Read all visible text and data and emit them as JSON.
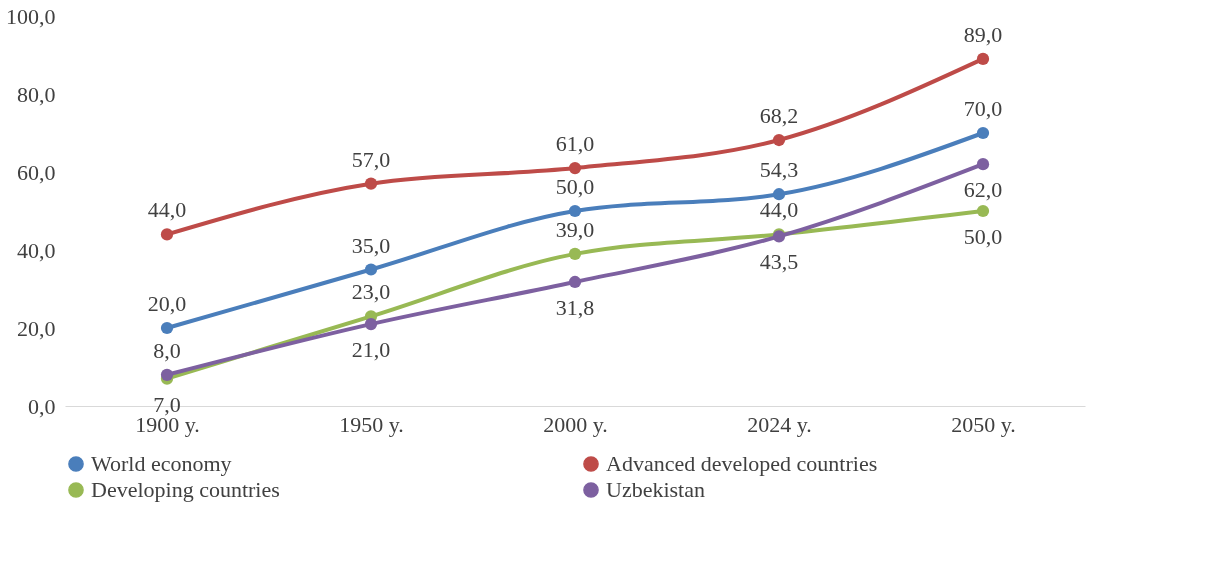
{
  "chart_data": {
    "type": "line",
    "categories": [
      "1900 y.",
      "1950 y.",
      "2000 y.",
      "2024 y.",
      "2050 y."
    ],
    "series": [
      {
        "name": "World economy",
        "color": "#4a7ebb",
        "values": [
          20,
          35,
          50,
          54.3,
          70
        ],
        "value_labels": [
          "20,0",
          "35,0",
          "50,0",
          "54,3",
          "70,0"
        ]
      },
      {
        "name": "Advanced developed countries",
        "color": "#be4b48",
        "values": [
          44,
          57,
          61,
          68.2,
          89
        ],
        "value_labels": [
          "44,0",
          "57,0",
          "61,0",
          "68,2",
          "89,0"
        ]
      },
      {
        "name": "Developing countries",
        "color": "#98b954",
        "values": [
          7,
          23,
          39,
          44,
          50
        ],
        "value_labels": [
          "7,0",
          "23,0",
          "39,0",
          "44,0",
          "50,0"
        ]
      },
      {
        "name": "Uzbekistan",
        "color": "#7d60a0",
        "values": [
          8,
          21,
          31.8,
          43.5,
          62
        ],
        "value_labels": [
          "8,0",
          "21,0",
          "31,8",
          "43,5",
          "62,0"
        ]
      }
    ],
    "ylim": [
      0,
      100
    ],
    "yticks": [
      {
        "value": 0,
        "label": "0,0"
      },
      {
        "value": 20,
        "label": "20,0"
      },
      {
        "value": 40,
        "label": "40,0"
      },
      {
        "value": 60,
        "label": "60,0"
      },
      {
        "value": 80,
        "label": "80,0"
      },
      {
        "value": 100,
        "label": "100,0"
      }
    ],
    "grid": false,
    "legend": "bottom",
    "marker": "circle",
    "line_style": "solid"
  }
}
